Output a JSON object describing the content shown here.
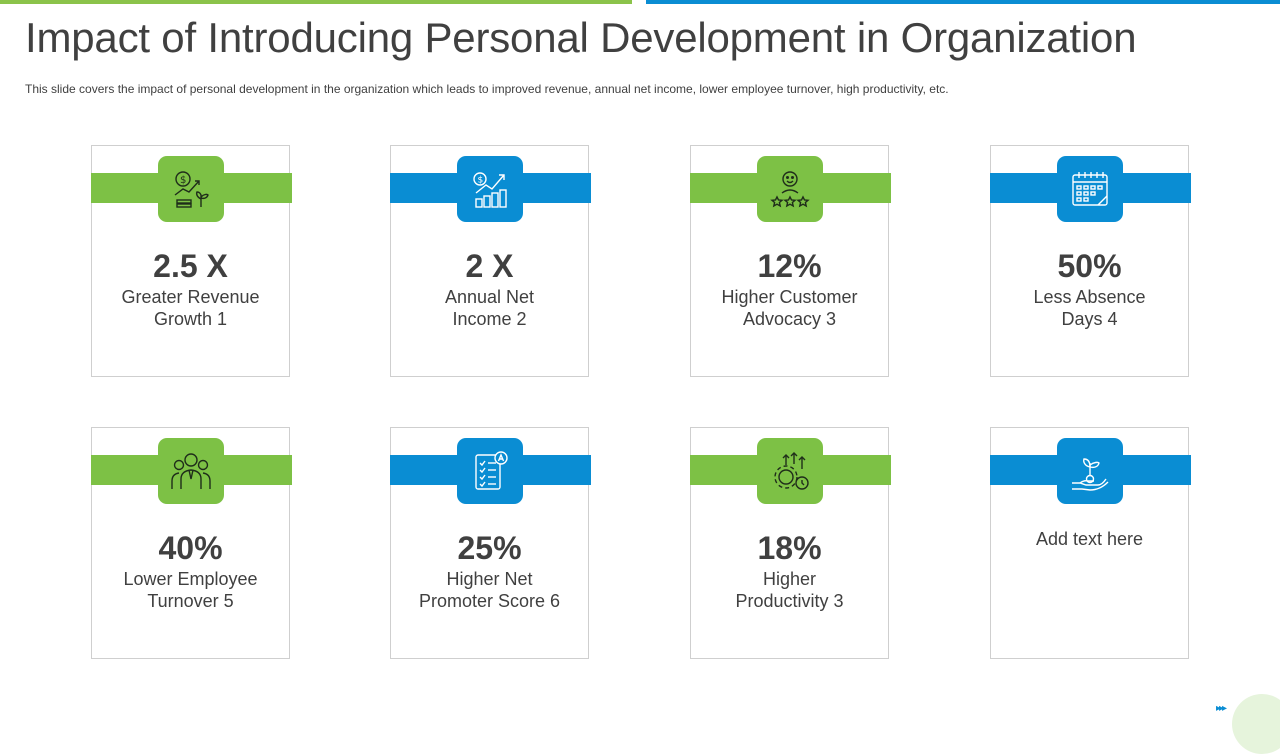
{
  "title": "Impact of Introducing Personal Development in Organization",
  "subtitle": "This slide covers the impact of personal development  in the organization which leads to improved  revenue,  annual net income, lower employee turnover,  high productivity, etc.",
  "colors": {
    "green": "#7DC145",
    "blue": "#0A8DD3",
    "text": "#404040"
  },
  "cards": [
    {
      "value": "2.5 X",
      "label_1": "Greater Revenue",
      "label_2": "Growth 1",
      "color": "green",
      "icon": "revenue-growth-icon"
    },
    {
      "value": "2 X",
      "label_1": "Annual Net",
      "label_2": "Income 2",
      "color": "blue",
      "icon": "net-income-chart-icon"
    },
    {
      "value": "12%",
      "label_1": "Higher Customer",
      "label_2": "Advocacy 3",
      "color": "green",
      "icon": "customer-rating-icon"
    },
    {
      "value": "50%",
      "label_1": "Less Absence",
      "label_2": "Days 4",
      "color": "blue",
      "icon": "calendar-icon"
    },
    {
      "value": "40%",
      "label_1": "Lower Employee",
      "label_2": "Turnover 5",
      "color": "green",
      "icon": "employees-group-icon"
    },
    {
      "value": "25%",
      "label_1": "Higher Net",
      "label_2": "Promoter Score 6",
      "color": "blue",
      "icon": "checklist-icon"
    },
    {
      "value": "18%",
      "label_1": "Higher",
      "label_2": "Productivity 3",
      "color": "green",
      "icon": "productivity-gear-icon"
    },
    {
      "label_1": "Add text here",
      "color": "blue",
      "icon": "plant-in-hand-icon"
    }
  ]
}
